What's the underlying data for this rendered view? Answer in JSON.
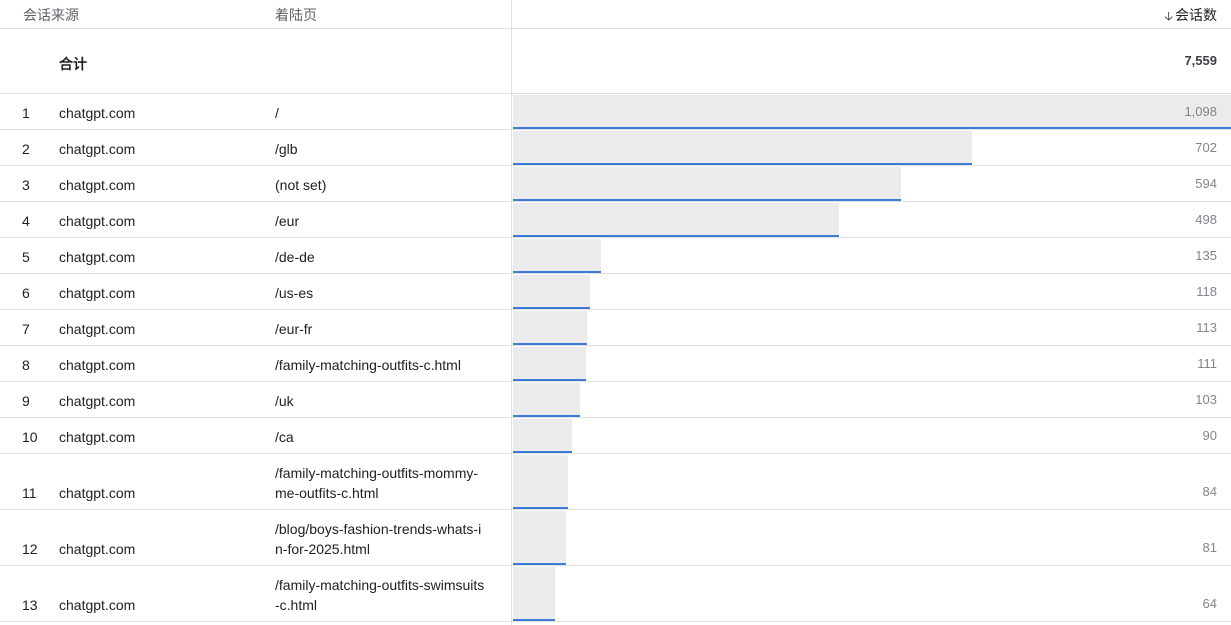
{
  "table": {
    "headers": {
      "source": "会话来源",
      "landing_page": "着陆页",
      "metric": "会话数"
    },
    "sort_icon": "arrow-down-icon",
    "total": {
      "label": "合计",
      "value": "7,559"
    },
    "bar_colors": {
      "fill": "#ebebeb",
      "accent": "#3e7ad6"
    },
    "rows": [
      {
        "index": "1",
        "source": "chatgpt.com",
        "landing_page": "/",
        "value": "1,098",
        "sessions": 1098
      },
      {
        "index": "2",
        "source": "chatgpt.com",
        "landing_page": "/glb",
        "value": "702",
        "sessions": 702
      },
      {
        "index": "3",
        "source": "chatgpt.com",
        "landing_page": "(not set)",
        "value": "594",
        "sessions": 594
      },
      {
        "index": "4",
        "source": "chatgpt.com",
        "landing_page": "/eur",
        "value": "498",
        "sessions": 498
      },
      {
        "index": "5",
        "source": "chatgpt.com",
        "landing_page": "/de-de",
        "value": "135",
        "sessions": 135
      },
      {
        "index": "6",
        "source": "chatgpt.com",
        "landing_page": "/us-es",
        "value": "118",
        "sessions": 118
      },
      {
        "index": "7",
        "source": "chatgpt.com",
        "landing_page": "/eur-fr",
        "value": "113",
        "sessions": 113
      },
      {
        "index": "8",
        "source": "chatgpt.com",
        "landing_page": "/family-matching-outfits-c.html",
        "value": "111",
        "sessions": 111
      },
      {
        "index": "9",
        "source": "chatgpt.com",
        "landing_page": "/uk",
        "value": "103",
        "sessions": 103
      },
      {
        "index": "10",
        "source": "chatgpt.com",
        "landing_page": "/ca",
        "value": "90",
        "sessions": 90
      },
      {
        "index": "11",
        "source": "chatgpt.com",
        "landing_page": "/family-matching-outfits-mommy-me-outfits-c.html",
        "value": "84",
        "sessions": 84
      },
      {
        "index": "12",
        "source": "chatgpt.com",
        "landing_page": "/blog/boys-fashion-trends-whats-in-for-2025.html",
        "value": "81",
        "sessions": 81
      },
      {
        "index": "13",
        "source": "chatgpt.com",
        "landing_page": "/family-matching-outfits-swimsuits-c.html",
        "value": "64",
        "sessions": 64
      }
    ]
  }
}
